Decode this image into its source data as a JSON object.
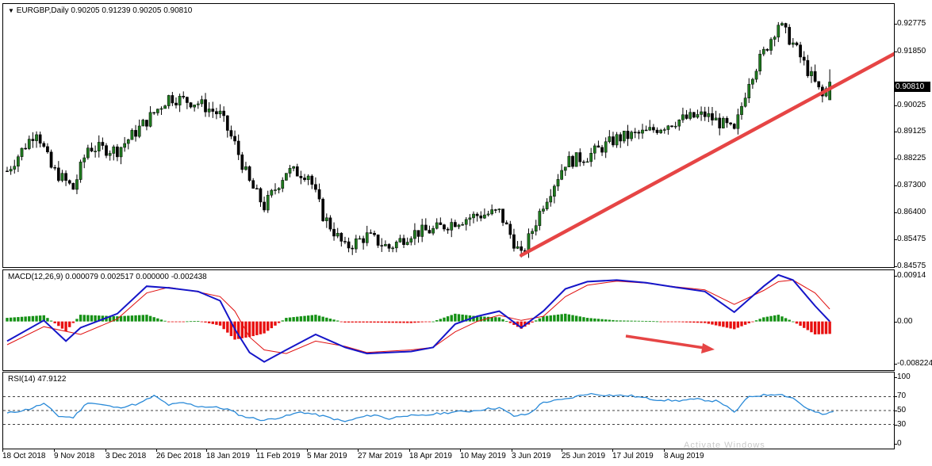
{
  "panes": {
    "price": {
      "title": "EURGBP,Daily  0.90205 0.91239 0.90205 0.90810",
      "current_price": "0.90810"
    },
    "macd": {
      "title": "MACD(12,26,9) 0.000079 0.002517 0.000000 -0.002438"
    },
    "rsi": {
      "title": "RSI(14) 47.9122"
    }
  },
  "watermark": "Activate Windows",
  "colors": {
    "bull_candle": "#1f7a1f",
    "bear_candle": "#b01010",
    "trendline": "#e64545",
    "macd_line": "#1515c8",
    "signal_line": "#e01010",
    "hist_pos": "#159115",
    "hist_neg": "#e81010",
    "rsi_line": "#2a8ad8"
  },
  "chart_data": [
    {
      "type": "candlestick",
      "title": "EURGBP,Daily",
      "ohlc_readout": {
        "open": 0.90205,
        "high": 0.91239,
        "low": 0.90205,
        "close": 0.9081
      },
      "x_tick_labels": [
        "18 Oct 2018",
        "9 Nov 2018",
        "3 Dec 2018",
        "26 Dec 2018",
        "18 Jan 2019",
        "11 Feb 2019",
        "5 Mar 2019",
        "27 Mar 2019",
        "18 Apr 2019",
        "10 May 2019",
        "3 Jun 2019",
        "25 Jun 2019",
        "17 Jul 2019",
        "8 Aug 2019"
      ],
      "y_tick_labels": [
        "0.92775",
        "0.91850",
        "0.90810",
        "0.90025",
        "0.89125",
        "0.88225",
        "0.87300",
        "0.86400",
        "0.85475",
        "0.84575"
      ],
      "ylim": [
        0.8455,
        0.9345
      ],
      "close_path": [
        {
          "bar": 0,
          "close": 0.878
        },
        {
          "bar": 8,
          "close": 0.892
        },
        {
          "bar": 12,
          "close": 0.879
        },
        {
          "bar": 18,
          "close": 0.872
        },
        {
          "bar": 22,
          "close": 0.886
        },
        {
          "bar": 30,
          "close": 0.885
        },
        {
          "bar": 38,
          "close": 0.895
        },
        {
          "bar": 44,
          "close": 0.903
        },
        {
          "bar": 52,
          "close": 0.901
        },
        {
          "bar": 58,
          "close": 0.897
        },
        {
          "bar": 62,
          "close": 0.887
        },
        {
          "bar": 66,
          "close": 0.874
        },
        {
          "bar": 70,
          "close": 0.866
        },
        {
          "bar": 76,
          "close": 0.878
        },
        {
          "bar": 82,
          "close": 0.877
        },
        {
          "bar": 86,
          "close": 0.863
        },
        {
          "bar": 92,
          "close": 0.852
        },
        {
          "bar": 98,
          "close": 0.856
        },
        {
          "bar": 104,
          "close": 0.852
        },
        {
          "bar": 110,
          "close": 0.857
        },
        {
          "bar": 116,
          "close": 0.858
        },
        {
          "bar": 122,
          "close": 0.861
        },
        {
          "bar": 128,
          "close": 0.863
        },
        {
          "bar": 134,
          "close": 0.864
        },
        {
          "bar": 140,
          "close": 0.849
        },
        {
          "bar": 146,
          "close": 0.867
        },
        {
          "bar": 152,
          "close": 0.881
        },
        {
          "bar": 158,
          "close": 0.883
        },
        {
          "bar": 166,
          "close": 0.889
        },
        {
          "bar": 174,
          "close": 0.891
        },
        {
          "bar": 182,
          "close": 0.895
        },
        {
          "bar": 190,
          "close": 0.897
        },
        {
          "bar": 196,
          "close": 0.893
        },
        {
          "bar": 198,
          "close": 0.891
        },
        {
          "bar": 202,
          "close": 0.909
        },
        {
          "bar": 206,
          "close": 0.918
        },
        {
          "bar": 210,
          "close": 0.928
        },
        {
          "bar": 214,
          "close": 0.921
        },
        {
          "bar": 218,
          "close": 0.912
        },
        {
          "bar": 222,
          "close": 0.903
        },
        {
          "bar": 224,
          "close": 0.9081
        }
      ],
      "trendline": {
        "start": {
          "bar": 140,
          "price": 0.8495
        },
        "end": {
          "bar": 257,
          "price": 0.928
        }
      }
    },
    {
      "type": "line_histogram",
      "title": "MACD(12,26,9)",
      "values_readout": [
        7.9e-05,
        0.002517,
        0.0,
        -0.002438
      ],
      "y_tick_labels": [
        "0.00914",
        "0.00",
        "-0.008224"
      ],
      "ylim": [
        -0.0094,
        0.0099
      ],
      "series": [
        {
          "name": "MACD",
          "points": [
            [
              0,
              -0.0038
            ],
            [
              10,
              0.0002
            ],
            [
              16,
              -0.0038
            ],
            [
              20,
              -0.0012
            ],
            [
              30,
              0.0015
            ],
            [
              38,
              0.0068
            ],
            [
              44,
              0.0065
            ],
            [
              52,
              0.0058
            ],
            [
              58,
              0.004
            ],
            [
              62,
              -0.0015
            ],
            [
              66,
              -0.006
            ],
            [
              70,
              -0.0078
            ],
            [
              76,
              -0.0055
            ],
            [
              84,
              -0.0025
            ],
            [
              92,
              -0.005
            ],
            [
              98,
              -0.0062
            ],
            [
              110,
              -0.0058
            ],
            [
              116,
              -0.005
            ],
            [
              122,
              -0.0005
            ],
            [
              128,
              0.001
            ],
            [
              134,
              0.002
            ],
            [
              140,
              -0.0012
            ],
            [
              146,
              0.002
            ],
            [
              152,
              0.0063
            ],
            [
              158,
              0.0077
            ],
            [
              166,
              0.008
            ],
            [
              174,
              0.0075
            ],
            [
              182,
              0.0066
            ],
            [
              190,
              0.0058
            ],
            [
              198,
              0.0018
            ],
            [
              206,
              0.0068
            ],
            [
              210,
              0.009
            ],
            [
              214,
              0.008
            ],
            [
              220,
              0.003
            ],
            [
              224,
              0.0
            ]
          ]
        },
        {
          "name": "Signal",
          "points": [
            [
              0,
              -0.0045
            ],
            [
              10,
              -0.001
            ],
            [
              20,
              -0.0025
            ],
            [
              30,
              0.0005
            ],
            [
              38,
              0.0055
            ],
            [
              44,
              0.0066
            ],
            [
              52,
              0.0057
            ],
            [
              58,
              0.0048
            ],
            [
              62,
              0.002
            ],
            [
              66,
              -0.003
            ],
            [
              70,
              -0.0055
            ],
            [
              76,
              -0.0062
            ],
            [
              84,
              -0.0038
            ],
            [
              92,
              -0.0048
            ],
            [
              98,
              -0.006
            ],
            [
              110,
              -0.0055
            ],
            [
              116,
              -0.005
            ],
            [
              122,
              -0.002
            ],
            [
              128,
              0.0
            ],
            [
              134,
              0.0012
            ],
            [
              140,
              0.0002
            ],
            [
              146,
              0.001
            ],
            [
              152,
              0.0048
            ],
            [
              158,
              0.007
            ],
            [
              166,
              0.0078
            ],
            [
              174,
              0.0074
            ],
            [
              182,
              0.0067
            ],
            [
              190,
              0.0061
            ],
            [
              198,
              0.0033
            ],
            [
              206,
              0.006
            ],
            [
              210,
              0.0077
            ],
            [
              214,
              0.008
            ],
            [
              220,
              0.0055
            ],
            [
              224,
              0.0024
            ]
          ]
        }
      ],
      "histogram": "MACD minus Signal per bar"
    },
    {
      "type": "line",
      "title": "RSI(14)",
      "value_readout": 47.9122,
      "y_tick_labels": [
        "100",
        "70",
        "50",
        "30",
        "0"
      ],
      "ylim": [
        0,
        100
      ],
      "levels": [
        70,
        50,
        30
      ],
      "series": [
        {
          "name": "RSI",
          "points": [
            [
              0,
              46
            ],
            [
              6,
              52
            ],
            [
              10,
              60
            ],
            [
              14,
              42
            ],
            [
              18,
              40
            ],
            [
              22,
              62
            ],
            [
              26,
              58
            ],
            [
              30,
              54
            ],
            [
              36,
              60
            ],
            [
              40,
              71
            ],
            [
              44,
              58
            ],
            [
              48,
              61
            ],
            [
              52,
              56
            ],
            [
              56,
              55
            ],
            [
              60,
              52
            ],
            [
              64,
              42
            ],
            [
              70,
              36
            ],
            [
              76,
              42
            ],
            [
              80,
              48
            ],
            [
              86,
              42
            ],
            [
              92,
              34
            ],
            [
              96,
              40
            ],
            [
              100,
              44
            ],
            [
              104,
              38
            ],
            [
              108,
              43
            ],
            [
              112,
              42
            ],
            [
              118,
              46
            ],
            [
              122,
              48
            ],
            [
              126,
              49
            ],
            [
              130,
              52
            ],
            [
              134,
              54
            ],
            [
              138,
              42
            ],
            [
              142,
              45
            ],
            [
              146,
              62
            ],
            [
              152,
              66
            ],
            [
              158,
              74
            ],
            [
              164,
              72
            ],
            [
              170,
              71
            ],
            [
              176,
              66
            ],
            [
              182,
              64
            ],
            [
              188,
              66
            ],
            [
              194,
              63
            ],
            [
              198,
              47
            ],
            [
              202,
              70
            ],
            [
              206,
              72
            ],
            [
              210,
              74
            ],
            [
              214,
              68
            ],
            [
              218,
              52
            ],
            [
              222,
              44
            ],
            [
              225,
              48
            ]
          ]
        }
      ]
    }
  ]
}
